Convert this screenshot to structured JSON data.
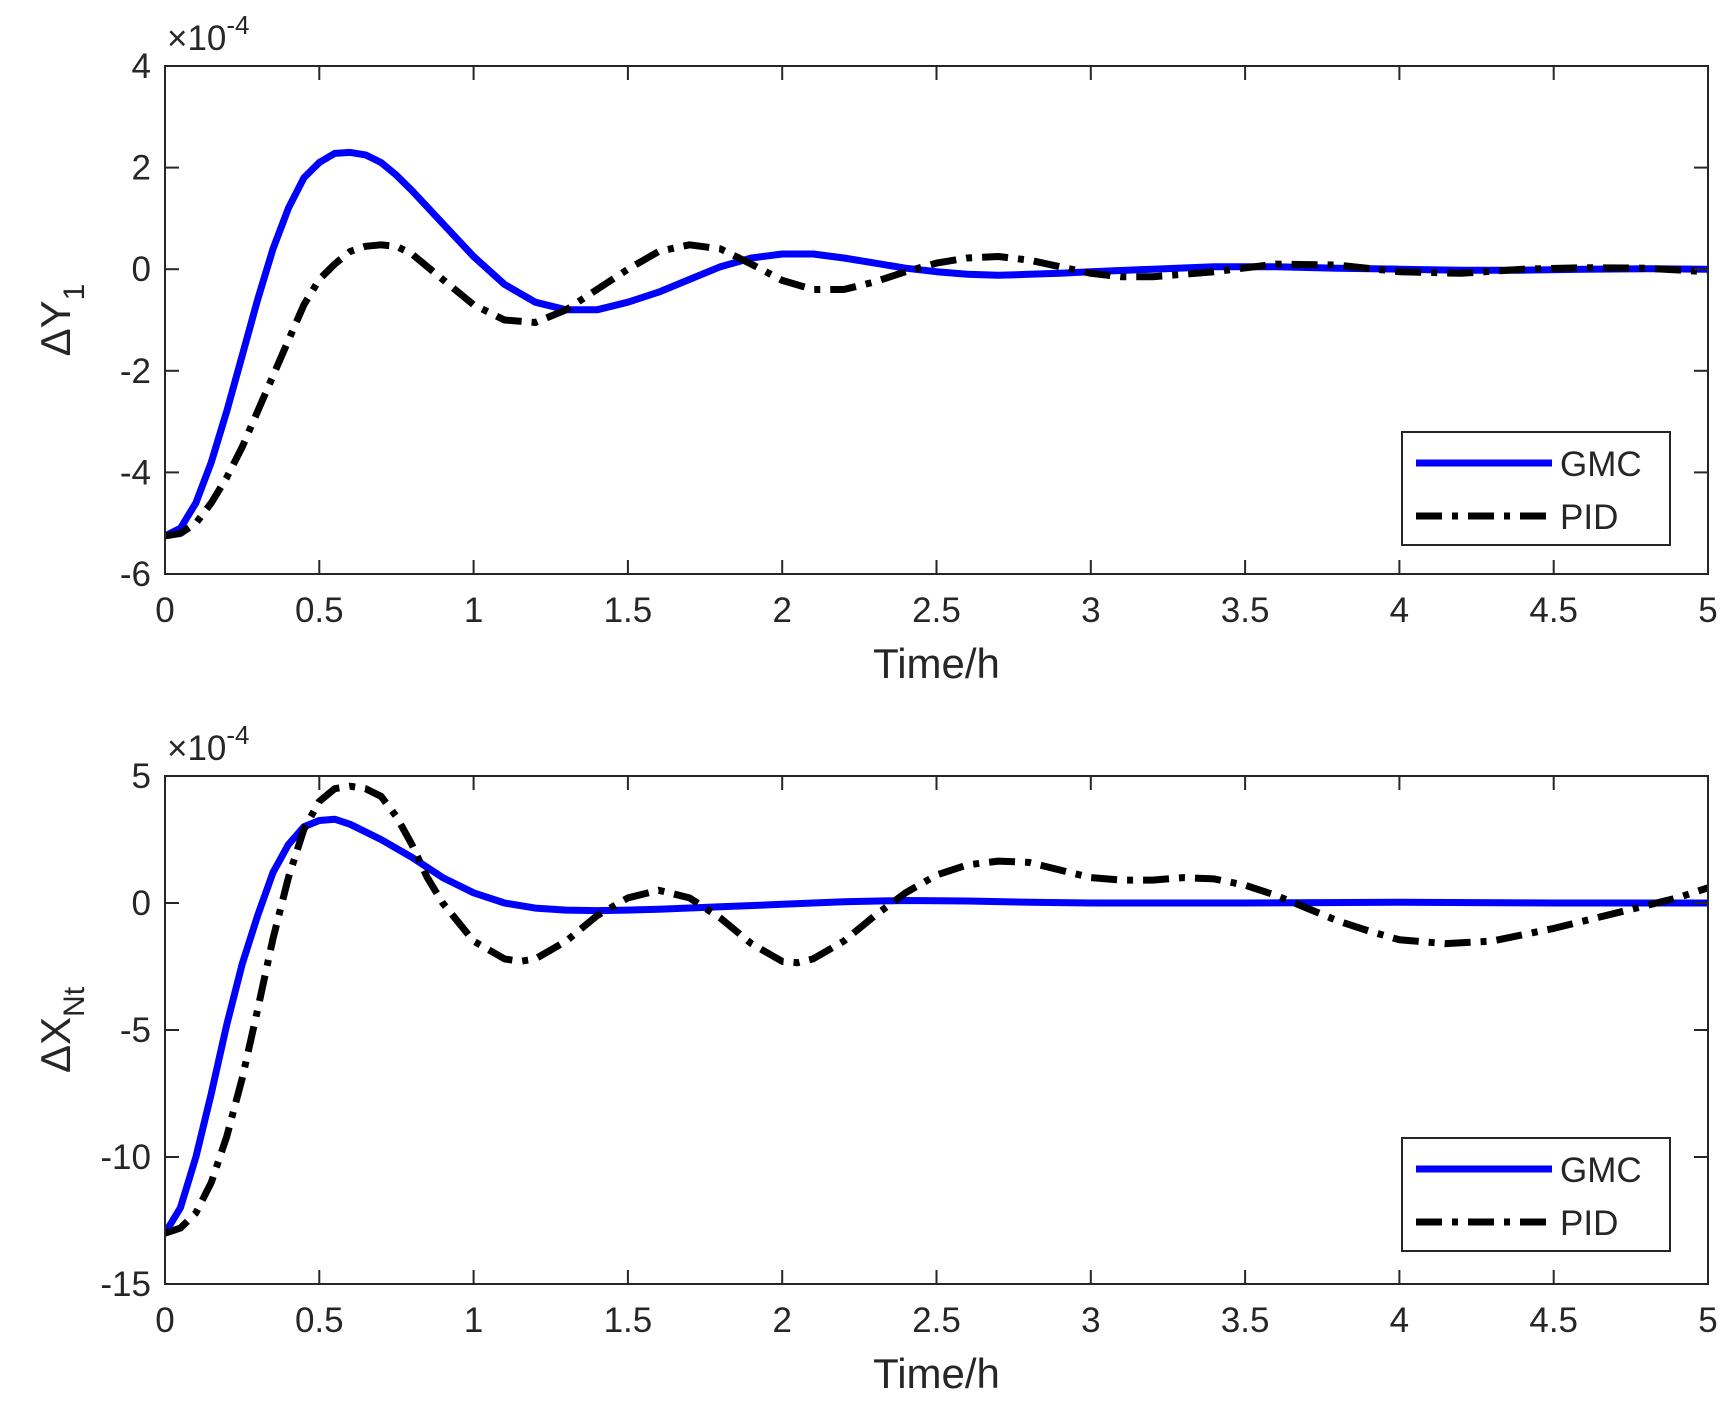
{
  "colors": {
    "gmc": "#0000ff",
    "pid": "#000000",
    "axis": "#262626",
    "background": "#ffffff"
  },
  "chart_data": [
    {
      "type": "line",
      "xlabel": "Time/h",
      "ylabel_base": "ΔY",
      "ylabel_sub": "1",
      "exponent_prefix": "×10",
      "exponent_power": "-4",
      "xlim": [
        0,
        5
      ],
      "ylim": [
        -6,
        4
      ],
      "xticks": [
        0,
        0.5,
        1,
        1.5,
        2,
        2.5,
        3,
        3.5,
        4,
        4.5,
        5
      ],
      "xtick_labels": [
        "0",
        "0.5",
        "1",
        "1.5",
        "2",
        "2.5",
        "3",
        "3.5",
        "4",
        "4.5",
        "5"
      ],
      "yticks": [
        -6,
        -4,
        -2,
        0,
        2,
        4
      ],
      "ytick_labels": [
        "-6",
        "-4",
        "-2",
        "0",
        "2",
        "4"
      ],
      "legend_position": "bottom-right",
      "grid": false,
      "series": [
        {
          "name": "GMC",
          "style": "solid",
          "color": "#0000ff",
          "x": [
            0,
            0.05,
            0.1,
            0.15,
            0.2,
            0.25,
            0.3,
            0.35,
            0.4,
            0.45,
            0.5,
            0.55,
            0.6,
            0.65,
            0.7,
            0.75,
            0.8,
            0.9,
            1.0,
            1.1,
            1.2,
            1.3,
            1.4,
            1.5,
            1.6,
            1.7,
            1.8,
            1.9,
            2.0,
            2.1,
            2.2,
            2.3,
            2.4,
            2.5,
            2.6,
            2.7,
            2.8,
            2.9,
            3.0,
            3.2,
            3.4,
            3.6,
            3.8,
            4.0,
            4.2,
            4.4,
            4.6,
            4.8,
            5.0
          ],
          "y": [
            -5.25,
            -5.1,
            -4.6,
            -3.8,
            -2.8,
            -1.7,
            -0.6,
            0.4,
            1.2,
            1.8,
            2.1,
            2.28,
            2.3,
            2.25,
            2.1,
            1.85,
            1.55,
            0.9,
            0.25,
            -0.3,
            -0.65,
            -0.8,
            -0.8,
            -0.65,
            -0.45,
            -0.2,
            0.05,
            0.22,
            0.3,
            0.3,
            0.22,
            0.12,
            0.02,
            -0.05,
            -0.1,
            -0.12,
            -0.1,
            -0.08,
            -0.05,
            0.0,
            0.05,
            0.05,
            0.02,
            0.0,
            -0.02,
            -0.02,
            0.0,
            0.01,
            0.0
          ]
        },
        {
          "name": "PID",
          "style": "dashdot",
          "color": "#000000",
          "x": [
            0,
            0.05,
            0.1,
            0.15,
            0.2,
            0.25,
            0.3,
            0.35,
            0.4,
            0.45,
            0.5,
            0.55,
            0.6,
            0.65,
            0.7,
            0.75,
            0.8,
            0.9,
            1.0,
            1.1,
            1.2,
            1.3,
            1.4,
            1.5,
            1.6,
            1.7,
            1.8,
            1.9,
            2.0,
            2.1,
            2.2,
            2.3,
            2.4,
            2.5,
            2.6,
            2.7,
            2.8,
            2.9,
            3.0,
            3.1,
            3.2,
            3.4,
            3.6,
            3.8,
            4.0,
            4.2,
            4.4,
            4.6,
            4.8,
            5.0
          ],
          "y": [
            -5.25,
            -5.2,
            -5.0,
            -4.6,
            -4.1,
            -3.5,
            -2.8,
            -2.1,
            -1.4,
            -0.7,
            -0.2,
            0.1,
            0.35,
            0.45,
            0.48,
            0.45,
            0.3,
            -0.2,
            -0.7,
            -1.0,
            -1.05,
            -0.8,
            -0.4,
            0.0,
            0.35,
            0.48,
            0.4,
            0.1,
            -0.22,
            -0.4,
            -0.4,
            -0.25,
            -0.05,
            0.12,
            0.22,
            0.25,
            0.18,
            0.05,
            -0.08,
            -0.15,
            -0.15,
            -0.05,
            0.1,
            0.08,
            -0.05,
            -0.08,
            0.0,
            0.03,
            0.02,
            -0.05
          ]
        }
      ]
    },
    {
      "type": "line",
      "xlabel": "Time/h",
      "ylabel_base": "ΔX",
      "ylabel_sub": "Nt",
      "exponent_prefix": "×10",
      "exponent_power": "-4",
      "xlim": [
        0,
        5
      ],
      "ylim": [
        -15,
        5
      ],
      "xticks": [
        0,
        0.5,
        1,
        1.5,
        2,
        2.5,
        3,
        3.5,
        4,
        4.5,
        5
      ],
      "xtick_labels": [
        "0",
        "0.5",
        "1",
        "1.5",
        "2",
        "2.5",
        "3",
        "3.5",
        "4",
        "4.5",
        "5"
      ],
      "yticks": [
        -15,
        -10,
        -5,
        0,
        5
      ],
      "ytick_labels": [
        "-15",
        "-10",
        "-5",
        "0",
        "5"
      ],
      "legend_position": "bottom-right",
      "grid": false,
      "series": [
        {
          "name": "GMC",
          "style": "solid",
          "color": "#0000ff",
          "x": [
            0,
            0.05,
            0.1,
            0.15,
            0.2,
            0.25,
            0.3,
            0.35,
            0.4,
            0.45,
            0.5,
            0.55,
            0.6,
            0.7,
            0.8,
            0.9,
            1.0,
            1.1,
            1.2,
            1.3,
            1.4,
            1.5,
            1.6,
            1.8,
            2.0,
            2.2,
            2.4,
            2.6,
            2.8,
            3.0,
            3.5,
            4.0,
            4.5,
            5.0
          ],
          "y": [
            -13.0,
            -12.0,
            -10.0,
            -7.5,
            -4.8,
            -2.4,
            -0.5,
            1.2,
            2.3,
            3.0,
            3.25,
            3.3,
            3.1,
            2.5,
            1.8,
            1.0,
            0.4,
            0.0,
            -0.2,
            -0.28,
            -0.3,
            -0.28,
            -0.25,
            -0.15,
            -0.05,
            0.05,
            0.1,
            0.08,
            0.03,
            0.0,
            0.0,
            0.03,
            0.0,
            0.0
          ]
        },
        {
          "name": "PID",
          "style": "dashdot",
          "color": "#000000",
          "x": [
            0,
            0.05,
            0.1,
            0.15,
            0.2,
            0.25,
            0.3,
            0.35,
            0.4,
            0.45,
            0.5,
            0.55,
            0.6,
            0.65,
            0.7,
            0.75,
            0.8,
            0.85,
            0.9,
            1.0,
            1.1,
            1.15,
            1.2,
            1.3,
            1.4,
            1.5,
            1.6,
            1.7,
            1.8,
            1.9,
            2.0,
            2.05,
            2.1,
            2.2,
            2.3,
            2.4,
            2.5,
            2.6,
            2.7,
            2.8,
            2.9,
            3.0,
            3.1,
            3.2,
            3.3,
            3.4,
            3.5,
            3.6,
            3.7,
            3.8,
            3.9,
            4.0,
            4.15,
            4.3,
            4.5,
            4.7,
            4.9,
            5.0
          ],
          "y": [
            -13.0,
            -12.8,
            -12.2,
            -11.0,
            -9.2,
            -6.9,
            -4.2,
            -1.4,
            1.0,
            2.9,
            4.0,
            4.5,
            4.6,
            4.5,
            4.2,
            3.4,
            2.3,
            1.0,
            0.0,
            -1.5,
            -2.2,
            -2.3,
            -2.2,
            -1.5,
            -0.5,
            0.2,
            0.5,
            0.2,
            -0.6,
            -1.6,
            -2.3,
            -2.35,
            -2.2,
            -1.5,
            -0.5,
            0.4,
            1.1,
            1.5,
            1.65,
            1.6,
            1.3,
            1.0,
            0.9,
            0.9,
            1.0,
            0.95,
            0.7,
            0.3,
            -0.2,
            -0.7,
            -1.1,
            -1.45,
            -1.6,
            -1.5,
            -1.0,
            -0.4,
            0.2,
            0.6
          ]
        }
      ]
    }
  ]
}
